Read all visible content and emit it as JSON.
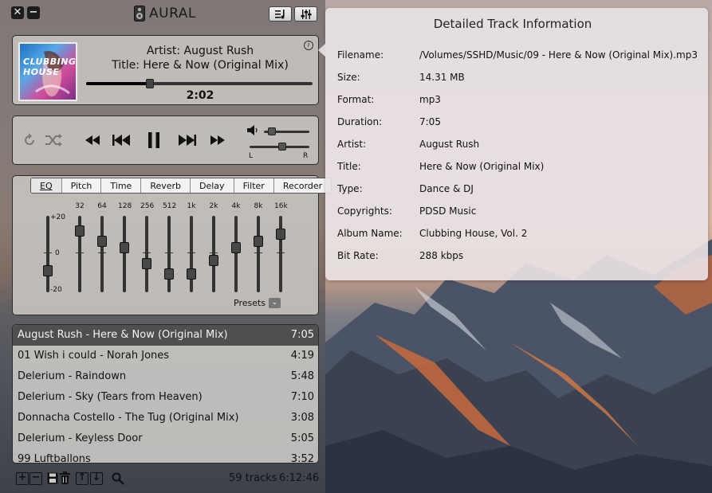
{
  "app": {
    "title": "AURAL"
  },
  "titlebar": {
    "close_icon": "close-icon",
    "minimize_icon": "minimize-icon",
    "playlist_toggle_icon": "playlist-icon",
    "effects_toggle_icon": "sliders-icon"
  },
  "now_playing": {
    "artist_label": "Artist:",
    "artist": "August Rush",
    "title_label": "Title:",
    "title": "Here & Now (Original Mix)",
    "time": "2:02",
    "progress": 0.28,
    "album_art_text": "CLUBBING HOUSE"
  },
  "controls": {
    "repeat_icon": "repeat-icon",
    "shuffle_icon": "shuffle-icon",
    "rewind_icon": "rewind-icon",
    "previous_icon": "previous-icon",
    "pause_icon": "pause-icon",
    "next_icon": "next-icon",
    "fast_forward_icon": "fast-forward-icon",
    "volume_icon": "speaker-icon",
    "volume_level": 0.08,
    "balance_left": "L",
    "balance_right": "R",
    "balance_level": 0.55
  },
  "effects": {
    "tabs": [
      "EQ",
      "Pitch",
      "Time",
      "Reverb",
      "Delay",
      "Filter",
      "Recorder"
    ],
    "active_tab": "EQ",
    "gain_labels": {
      "top": "+20",
      "mid": "0",
      "bottom": "-20"
    },
    "preamp_level": 0.25,
    "bands": [
      {
        "label": "32",
        "level": 0.85
      },
      {
        "label": "64",
        "level": 0.7
      },
      {
        "label": "128",
        "level": 0.6
      },
      {
        "label": "256",
        "level": 0.35
      },
      {
        "label": "512",
        "level": 0.2
      },
      {
        "label": "1k",
        "level": 0.2
      },
      {
        "label": "2k",
        "level": 0.4
      },
      {
        "label": "4k",
        "level": 0.6
      },
      {
        "label": "8k",
        "level": 0.7
      },
      {
        "label": "16k",
        "level": 0.8
      }
    ],
    "presets_label": "Presets"
  },
  "playlist": {
    "tracks": [
      {
        "name": "August Rush - Here & Now (Original Mix)",
        "duration": "7:05",
        "selected": true
      },
      {
        "name": "01 Wish i could - Norah Jones",
        "duration": "4:19",
        "selected": false
      },
      {
        "name": "Delerium - Raindown",
        "duration": "5:48",
        "selected": false
      },
      {
        "name": "Delerium - Sky (Tears from Heaven)",
        "duration": "7:10",
        "selected": false
      },
      {
        "name": "Donnacha Costello - The Tug (Original Mix)",
        "duration": "3:08",
        "selected": false
      },
      {
        "name": "Delerium - Keyless Door",
        "duration": "5:05",
        "selected": false
      },
      {
        "name": "99 Luftballons",
        "duration": "3:52",
        "selected": false
      }
    ],
    "summary": {
      "track_count": "59 tracks",
      "total_duration": "6:12:46"
    }
  },
  "track_info": {
    "title": "Detailed Track Information",
    "fields": [
      {
        "key": "Filename:",
        "value": "/Volumes/SSHD/Music/09 - Here & Now (Original Mix).mp3"
      },
      {
        "key": "Size:",
        "value": "14.31 MB"
      },
      {
        "key": "Format:",
        "value": "mp3"
      },
      {
        "key": "Duration:",
        "value": "7:05"
      },
      {
        "key": "Artist:",
        "value": "August Rush"
      },
      {
        "key": "Title:",
        "value": "Here & Now (Original Mix)"
      },
      {
        "key": "Type:",
        "value": "Dance & DJ"
      },
      {
        "key": "Copyrights:",
        "value": "PDSD Music"
      },
      {
        "key": "Album Name:",
        "value": "Clubbing House, Vol. 2"
      },
      {
        "key": "Bit Rate:",
        "value": "288 kbps"
      }
    ]
  },
  "colors": {
    "selected_row": "#4f4f4f",
    "panel": "#c4c1be",
    "popover": "#e8e2e4"
  }
}
